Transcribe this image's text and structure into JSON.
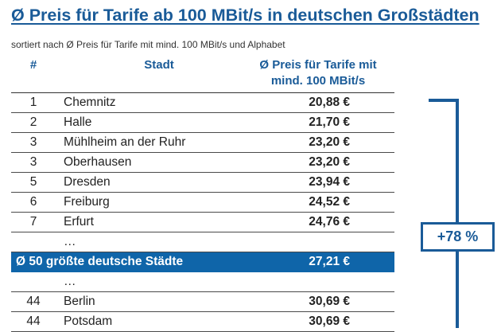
{
  "title": "Ø Preis für Tarife ab 100 MBit/s in deutschen Großstädten",
  "subtitle": "sortiert nach Ø Preis für Tarife mit mind. 100 MBit/s und Alphabet",
  "columns": {
    "rank": "#",
    "city": "Stadt",
    "price_line1": "Ø Preis für Tarife mit",
    "price_line2": "mind. 100 MBit/s"
  },
  "badge": "+78 %",
  "chart_data": {
    "type": "table",
    "title": "Ø Preis für Tarife ab 100 MBit/s in deutschen Großstädten",
    "columns": [
      "#",
      "Stadt",
      "Ø Preis für Tarife mit mind. 100 MBit/s"
    ],
    "rows": [
      {
        "kind": "data",
        "rank": "1",
        "city": "Chemnitz",
        "price": "20,88 €"
      },
      {
        "kind": "data",
        "rank": "2",
        "city": "Halle",
        "price": "21,70 €"
      },
      {
        "kind": "data",
        "rank": "3",
        "city": "Mühlheim an der Ruhr",
        "price": "23,20 €"
      },
      {
        "kind": "data",
        "rank": "3",
        "city": "Oberhausen",
        "price": "23,20 €"
      },
      {
        "kind": "data",
        "rank": "5",
        "city": "Dresden",
        "price": "23,94 €"
      },
      {
        "kind": "data",
        "rank": "6",
        "city": "Freiburg",
        "price": "24,52 €"
      },
      {
        "kind": "data",
        "rank": "7",
        "city": "Erfurt",
        "price": "24,76 €"
      },
      {
        "kind": "ellipsis",
        "text": "…"
      },
      {
        "kind": "average",
        "label": "Ø 50 größte deutsche Städte",
        "price": "27,21 €"
      },
      {
        "kind": "ellipsis",
        "text": "…"
      },
      {
        "kind": "data",
        "rank": "44",
        "city": "Berlin",
        "price": "30,69 €"
      },
      {
        "kind": "data",
        "rank": "44",
        "city": "Potsdam",
        "price": "30,69 €"
      }
    ]
  }
}
